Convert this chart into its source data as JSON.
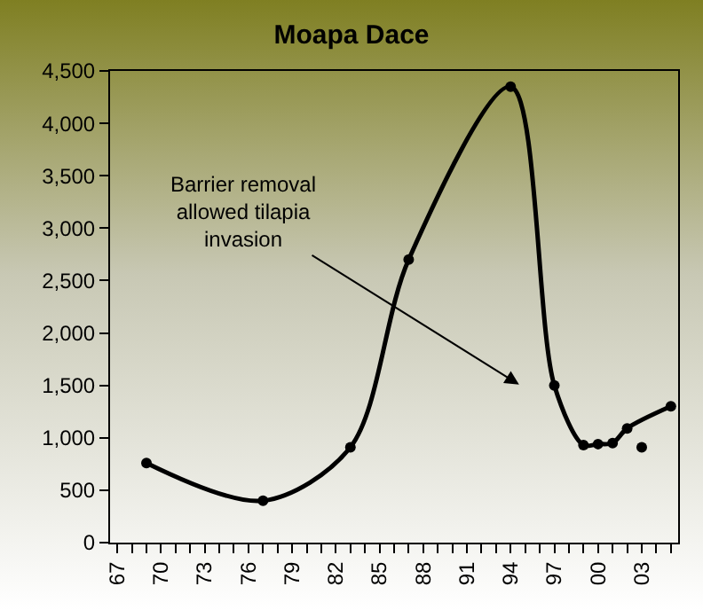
{
  "chart_data": {
    "type": "line",
    "title": "Moapa Dace",
    "series": [
      {
        "color": "#000000",
        "x": [
          1969,
          1977,
          1983,
          1987,
          1994,
          1997,
          1999,
          2000,
          2001,
          2002,
          2005
        ],
        "values": [
          760,
          400,
          910,
          2700,
          4350,
          1500,
          930,
          940,
          950,
          1090,
          1300
        ]
      },
      {
        "type": "scatter",
        "color": "#000000",
        "x": [
          2003
        ],
        "values": [
          910
        ]
      }
    ],
    "xlim": [
      1966.5,
      2005.5
    ],
    "xticks": [
      {
        "value": 1967,
        "label": "67"
      },
      {
        "value": 1968,
        "label": null
      },
      {
        "value": 1969,
        "label": null
      },
      {
        "value": 1970,
        "label": "70"
      },
      {
        "value": 1971,
        "label": null
      },
      {
        "value": 1972,
        "label": null
      },
      {
        "value": 1973,
        "label": "73"
      },
      {
        "value": 1974,
        "label": null
      },
      {
        "value": 1975,
        "label": null
      },
      {
        "value": 1976,
        "label": "76"
      },
      {
        "value": 1977,
        "label": null
      },
      {
        "value": 1978,
        "label": null
      },
      {
        "value": 1979,
        "label": "79"
      },
      {
        "value": 1980,
        "label": null
      },
      {
        "value": 1981,
        "label": null
      },
      {
        "value": 1982,
        "label": "82"
      },
      {
        "value": 1983,
        "label": null
      },
      {
        "value": 1984,
        "label": null
      },
      {
        "value": 1985,
        "label": "85"
      },
      {
        "value": 1986,
        "label": null
      },
      {
        "value": 1987,
        "label": null
      },
      {
        "value": 1988,
        "label": "88"
      },
      {
        "value": 1989,
        "label": null
      },
      {
        "value": 1990,
        "label": null
      },
      {
        "value": 1991,
        "label": "91"
      },
      {
        "value": 1992,
        "label": null
      },
      {
        "value": 1993,
        "label": null
      },
      {
        "value": 1994,
        "label": "94"
      },
      {
        "value": 1995,
        "label": null
      },
      {
        "value": 1996,
        "label": null
      },
      {
        "value": 1997,
        "label": "97"
      },
      {
        "value": 1998,
        "label": null
      },
      {
        "value": 1999,
        "label": null
      },
      {
        "value": 2000,
        "label": "00"
      },
      {
        "value": 2001,
        "label": null
      },
      {
        "value": 2002,
        "label": null
      },
      {
        "value": 2003,
        "label": "03"
      },
      {
        "value": 2004,
        "label": null
      },
      {
        "value": 2005,
        "label": null
      }
    ],
    "ylim": [
      0,
      4500
    ],
    "yticks": [
      {
        "value": 0,
        "label": "0"
      },
      {
        "value": 500,
        "label": "500"
      },
      {
        "value": 1000,
        "label": "1,000"
      },
      {
        "value": 1500,
        "label": "1,500"
      },
      {
        "value": 2000,
        "label": "2,000"
      },
      {
        "value": 2500,
        "label": "2,500"
      },
      {
        "value": 3000,
        "label": "3,000"
      },
      {
        "value": 3500,
        "label": "3,500"
      },
      {
        "value": 4000,
        "label": "4,000"
      },
      {
        "value": 4500,
        "label": "4,500"
      }
    ],
    "annotations": [
      "Barrier removal\nallowed tilapia\ninvasion"
    ],
    "marker": "circle",
    "grid": false
  }
}
